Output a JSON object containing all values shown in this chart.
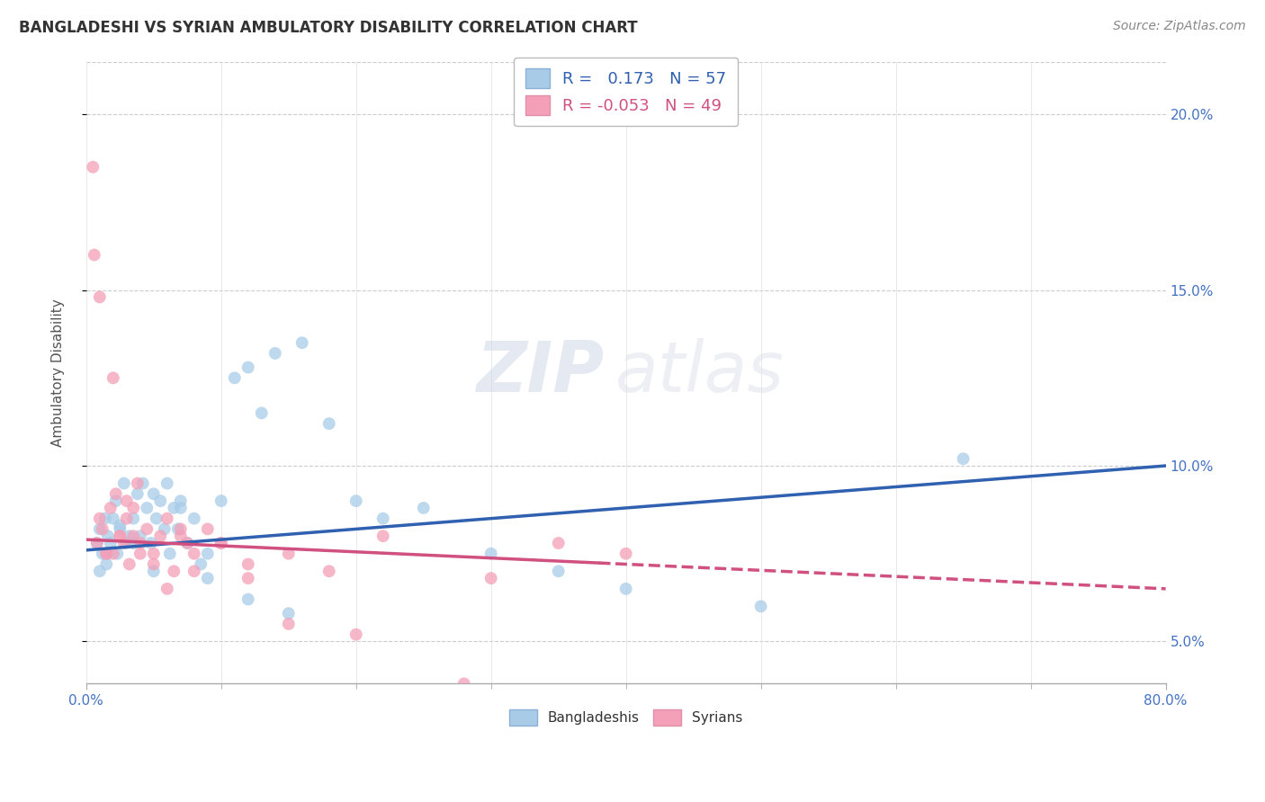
{
  "title": "BANGLADESHI VS SYRIAN AMBULATORY DISABILITY CORRELATION CHART",
  "source": "Source: ZipAtlas.com",
  "ylabel": "Ambulatory Disability",
  "legend_bangladeshi": "Bangladeshis",
  "legend_syrian": "Syrians",
  "r_bangladeshi": 0.173,
  "n_bangladeshi": 57,
  "r_syrian": -0.053,
  "n_syrian": 49,
  "xmin": 0.0,
  "xmax": 80.0,
  "ymin": 3.8,
  "ymax": 21.5,
  "yticks": [
    5.0,
    10.0,
    15.0,
    20.0
  ],
  "color_bangladeshi": "#a8cce8",
  "color_syrian": "#f4a0b8",
  "trendline_bangladeshi_color": "#3060b0",
  "trendline_syrian_color": "#d05080",
  "background_color": "#ffffff",
  "watermark": "ZIPatlas",
  "trend_b_x0": 0.0,
  "trend_b_y0": 7.6,
  "trend_b_x1": 80.0,
  "trend_b_y1": 10.0,
  "trend_s_x0": 0.0,
  "trend_s_y0": 7.9,
  "trend_s_x1": 80.0,
  "trend_s_y1": 6.5,
  "trend_s_solid_end": 38.0,
  "bangladeshi_x": [
    0.8,
    1.0,
    1.2,
    1.4,
    1.5,
    1.6,
    1.8,
    2.0,
    2.2,
    2.3,
    2.5,
    2.8,
    3.0,
    3.2,
    3.5,
    3.8,
    4.0,
    4.2,
    4.5,
    4.8,
    5.0,
    5.2,
    5.5,
    5.8,
    6.0,
    6.2,
    6.5,
    6.8,
    7.0,
    7.5,
    8.0,
    8.5,
    9.0,
    10.0,
    11.0,
    12.0,
    13.0,
    14.0,
    16.0,
    18.0,
    20.0,
    22.0,
    25.0,
    30.0,
    35.0,
    40.0,
    50.0,
    65.0,
    1.0,
    1.5,
    2.5,
    3.5,
    5.0,
    7.0,
    9.0,
    12.0,
    15.0
  ],
  "bangladeshi_y": [
    7.8,
    8.2,
    7.5,
    8.5,
    7.2,
    8.0,
    7.8,
    8.5,
    9.0,
    7.5,
    8.3,
    9.5,
    7.8,
    8.0,
    8.5,
    9.2,
    8.0,
    9.5,
    8.8,
    7.8,
    9.2,
    8.5,
    9.0,
    8.2,
    9.5,
    7.5,
    8.8,
    8.2,
    9.0,
    7.8,
    8.5,
    7.2,
    7.5,
    9.0,
    12.5,
    12.8,
    11.5,
    13.2,
    13.5,
    11.2,
    9.0,
    8.5,
    8.8,
    7.5,
    7.0,
    6.5,
    6.0,
    10.2,
    7.0,
    7.5,
    8.2,
    7.8,
    7.0,
    8.8,
    6.8,
    6.2,
    5.8
  ],
  "syrian_x": [
    0.5,
    0.8,
    1.0,
    1.2,
    1.5,
    1.8,
    2.0,
    2.2,
    2.5,
    2.8,
    3.0,
    3.2,
    3.5,
    3.8,
    4.0,
    4.5,
    5.0,
    5.5,
    6.0,
    6.5,
    7.0,
    7.5,
    8.0,
    9.0,
    10.0,
    12.0,
    15.0,
    18.0,
    22.0,
    30.0,
    35.0,
    40.0,
    0.6,
    1.0,
    1.5,
    2.0,
    2.5,
    3.0,
    3.5,
    4.0,
    5.0,
    6.0,
    7.0,
    8.0,
    10.0,
    12.0,
    15.0,
    20.0,
    28.0
  ],
  "syrian_y": [
    18.5,
    7.8,
    8.5,
    8.2,
    7.5,
    8.8,
    7.5,
    9.2,
    8.0,
    7.8,
    8.5,
    7.2,
    8.0,
    9.5,
    7.8,
    8.2,
    7.5,
    8.0,
    8.5,
    7.0,
    8.2,
    7.8,
    7.5,
    8.2,
    7.8,
    7.2,
    7.5,
    7.0,
    8.0,
    6.8,
    7.8,
    7.5,
    16.0,
    14.8,
    7.5,
    12.5,
    8.0,
    9.0,
    8.8,
    7.5,
    7.2,
    6.5,
    8.0,
    7.0,
    7.8,
    6.8,
    5.5,
    5.2,
    3.8
  ]
}
